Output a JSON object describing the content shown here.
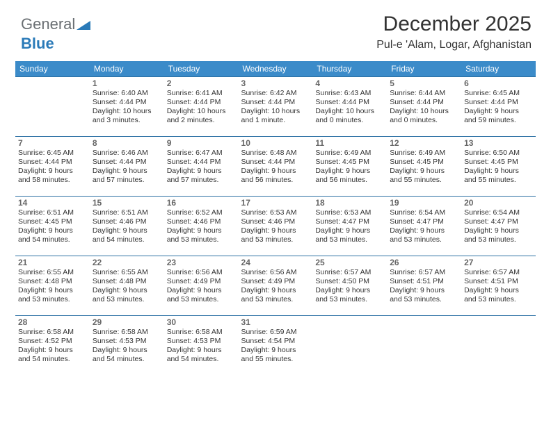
{
  "brand": {
    "part1": "General",
    "part2": "Blue"
  },
  "header": {
    "month_title": "December 2025",
    "location": "Pul-e 'Alam, Logar, Afghanistan"
  },
  "colors": {
    "header_bg": "#3b8bc9",
    "row_border": "#2a6fa3",
    "text": "#333333",
    "daynum": "#666666",
    "brand_gray": "#6a6f73",
    "brand_blue": "#2a7ab8",
    "background": "#ffffff"
  },
  "typography": {
    "title_fontsize": 30,
    "location_fontsize": 16,
    "dayheader_fontsize": 12,
    "cell_fontsize": 10.5
  },
  "calendar": {
    "type": "table",
    "day_headers": [
      "Sunday",
      "Monday",
      "Tuesday",
      "Wednesday",
      "Thursday",
      "Friday",
      "Saturday"
    ],
    "first_weekday_index": 1,
    "num_days": 31,
    "days": {
      "1": {
        "sunrise": "Sunrise: 6:40 AM",
        "sunset": "Sunset: 4:44 PM",
        "day1": "Daylight: 10 hours",
        "day2": "and 3 minutes."
      },
      "2": {
        "sunrise": "Sunrise: 6:41 AM",
        "sunset": "Sunset: 4:44 PM",
        "day1": "Daylight: 10 hours",
        "day2": "and 2 minutes."
      },
      "3": {
        "sunrise": "Sunrise: 6:42 AM",
        "sunset": "Sunset: 4:44 PM",
        "day1": "Daylight: 10 hours",
        "day2": "and 1 minute."
      },
      "4": {
        "sunrise": "Sunrise: 6:43 AM",
        "sunset": "Sunset: 4:44 PM",
        "day1": "Daylight: 10 hours",
        "day2": "and 0 minutes."
      },
      "5": {
        "sunrise": "Sunrise: 6:44 AM",
        "sunset": "Sunset: 4:44 PM",
        "day1": "Daylight: 10 hours",
        "day2": "and 0 minutes."
      },
      "6": {
        "sunrise": "Sunrise: 6:45 AM",
        "sunset": "Sunset: 4:44 PM",
        "day1": "Daylight: 9 hours",
        "day2": "and 59 minutes."
      },
      "7": {
        "sunrise": "Sunrise: 6:45 AM",
        "sunset": "Sunset: 4:44 PM",
        "day1": "Daylight: 9 hours",
        "day2": "and 58 minutes."
      },
      "8": {
        "sunrise": "Sunrise: 6:46 AM",
        "sunset": "Sunset: 4:44 PM",
        "day1": "Daylight: 9 hours",
        "day2": "and 57 minutes."
      },
      "9": {
        "sunrise": "Sunrise: 6:47 AM",
        "sunset": "Sunset: 4:44 PM",
        "day1": "Daylight: 9 hours",
        "day2": "and 57 minutes."
      },
      "10": {
        "sunrise": "Sunrise: 6:48 AM",
        "sunset": "Sunset: 4:44 PM",
        "day1": "Daylight: 9 hours",
        "day2": "and 56 minutes."
      },
      "11": {
        "sunrise": "Sunrise: 6:49 AM",
        "sunset": "Sunset: 4:45 PM",
        "day1": "Daylight: 9 hours",
        "day2": "and 56 minutes."
      },
      "12": {
        "sunrise": "Sunrise: 6:49 AM",
        "sunset": "Sunset: 4:45 PM",
        "day1": "Daylight: 9 hours",
        "day2": "and 55 minutes."
      },
      "13": {
        "sunrise": "Sunrise: 6:50 AM",
        "sunset": "Sunset: 4:45 PM",
        "day1": "Daylight: 9 hours",
        "day2": "and 55 minutes."
      },
      "14": {
        "sunrise": "Sunrise: 6:51 AM",
        "sunset": "Sunset: 4:45 PM",
        "day1": "Daylight: 9 hours",
        "day2": "and 54 minutes."
      },
      "15": {
        "sunrise": "Sunrise: 6:51 AM",
        "sunset": "Sunset: 4:46 PM",
        "day1": "Daylight: 9 hours",
        "day2": "and 54 minutes."
      },
      "16": {
        "sunrise": "Sunrise: 6:52 AM",
        "sunset": "Sunset: 4:46 PM",
        "day1": "Daylight: 9 hours",
        "day2": "and 53 minutes."
      },
      "17": {
        "sunrise": "Sunrise: 6:53 AM",
        "sunset": "Sunset: 4:46 PM",
        "day1": "Daylight: 9 hours",
        "day2": "and 53 minutes."
      },
      "18": {
        "sunrise": "Sunrise: 6:53 AM",
        "sunset": "Sunset: 4:47 PM",
        "day1": "Daylight: 9 hours",
        "day2": "and 53 minutes."
      },
      "19": {
        "sunrise": "Sunrise: 6:54 AM",
        "sunset": "Sunset: 4:47 PM",
        "day1": "Daylight: 9 hours",
        "day2": "and 53 minutes."
      },
      "20": {
        "sunrise": "Sunrise: 6:54 AM",
        "sunset": "Sunset: 4:47 PM",
        "day1": "Daylight: 9 hours",
        "day2": "and 53 minutes."
      },
      "21": {
        "sunrise": "Sunrise: 6:55 AM",
        "sunset": "Sunset: 4:48 PM",
        "day1": "Daylight: 9 hours",
        "day2": "and 53 minutes."
      },
      "22": {
        "sunrise": "Sunrise: 6:55 AM",
        "sunset": "Sunset: 4:48 PM",
        "day1": "Daylight: 9 hours",
        "day2": "and 53 minutes."
      },
      "23": {
        "sunrise": "Sunrise: 6:56 AM",
        "sunset": "Sunset: 4:49 PM",
        "day1": "Daylight: 9 hours",
        "day2": "and 53 minutes."
      },
      "24": {
        "sunrise": "Sunrise: 6:56 AM",
        "sunset": "Sunset: 4:49 PM",
        "day1": "Daylight: 9 hours",
        "day2": "and 53 minutes."
      },
      "25": {
        "sunrise": "Sunrise: 6:57 AM",
        "sunset": "Sunset: 4:50 PM",
        "day1": "Daylight: 9 hours",
        "day2": "and 53 minutes."
      },
      "26": {
        "sunrise": "Sunrise: 6:57 AM",
        "sunset": "Sunset: 4:51 PM",
        "day1": "Daylight: 9 hours",
        "day2": "and 53 minutes."
      },
      "27": {
        "sunrise": "Sunrise: 6:57 AM",
        "sunset": "Sunset: 4:51 PM",
        "day1": "Daylight: 9 hours",
        "day2": "and 53 minutes."
      },
      "28": {
        "sunrise": "Sunrise: 6:58 AM",
        "sunset": "Sunset: 4:52 PM",
        "day1": "Daylight: 9 hours",
        "day2": "and 54 minutes."
      },
      "29": {
        "sunrise": "Sunrise: 6:58 AM",
        "sunset": "Sunset: 4:53 PM",
        "day1": "Daylight: 9 hours",
        "day2": "and 54 minutes."
      },
      "30": {
        "sunrise": "Sunrise: 6:58 AM",
        "sunset": "Sunset: 4:53 PM",
        "day1": "Daylight: 9 hours",
        "day2": "and 54 minutes."
      },
      "31": {
        "sunrise": "Sunrise: 6:59 AM",
        "sunset": "Sunset: 4:54 PM",
        "day1": "Daylight: 9 hours",
        "day2": "and 55 minutes."
      }
    }
  }
}
